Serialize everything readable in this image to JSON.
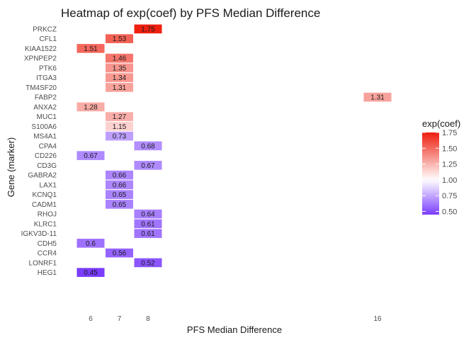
{
  "chart_data": {
    "type": "heatmap",
    "title": "Heatmap of exp(coef) by PFS Median Difference",
    "xlabel": "PFS Median Difference",
    "ylabel": "Gene (marker)",
    "x_categories": [
      "6",
      "7",
      "8",
      "16"
    ],
    "x_domain": [
      6,
      16
    ],
    "y_categories": [
      "PRKCZ",
      "CFL1",
      "KIAA1522",
      "XPNPEP2",
      "PTK6",
      "ITGA3",
      "TM4SF20",
      "FABP2",
      "ANXA2",
      "MUC1",
      "S100A6",
      "MS4A1",
      "CPA4",
      "CD226",
      "CD3G",
      "GABRA2",
      "LAX1",
      "KCNQ1",
      "CADM1",
      "RHOJ",
      "KLRC1",
      "IGKV3D-11",
      "CDH5",
      "CCR4",
      "LONRF1",
      "HEG1"
    ],
    "cells": [
      {
        "gene": "PRKCZ",
        "x": 8,
        "value": 1.75,
        "label": "1.75"
      },
      {
        "gene": "CFL1",
        "x": 7,
        "value": 1.53,
        "label": "1.53"
      },
      {
        "gene": "KIAA1522",
        "x": 6,
        "value": 1.51,
        "label": "1.51"
      },
      {
        "gene": "XPNPEP2",
        "x": 7,
        "value": 1.46,
        "label": "1.46"
      },
      {
        "gene": "PTK6",
        "x": 7,
        "value": 1.35,
        "label": "1.35"
      },
      {
        "gene": "ITGA3",
        "x": 7,
        "value": 1.34,
        "label": "1.34"
      },
      {
        "gene": "TM4SF20",
        "x": 7,
        "value": 1.31,
        "label": "1.31"
      },
      {
        "gene": "FABP2",
        "x": 16,
        "value": 1.31,
        "label": "1.31"
      },
      {
        "gene": "ANXA2",
        "x": 6,
        "value": 1.28,
        "label": "1.28"
      },
      {
        "gene": "MUC1",
        "x": 7,
        "value": 1.27,
        "label": "1.27"
      },
      {
        "gene": "S100A6",
        "x": 7,
        "value": 1.15,
        "label": "1.15"
      },
      {
        "gene": "MS4A1",
        "x": 7,
        "value": 0.73,
        "label": "0.73"
      },
      {
        "gene": "CPA4",
        "x": 8,
        "value": 0.68,
        "label": "0.68"
      },
      {
        "gene": "CD226",
        "x": 6,
        "value": 0.67,
        "label": "0.67"
      },
      {
        "gene": "CD3G",
        "x": 8,
        "value": 0.67,
        "label": "0.67"
      },
      {
        "gene": "GABRA2",
        "x": 7,
        "value": 0.66,
        "label": "0.66"
      },
      {
        "gene": "LAX1",
        "x": 7,
        "value": 0.66,
        "label": "0.66"
      },
      {
        "gene": "KCNQ1",
        "x": 7,
        "value": 0.65,
        "label": "0.65"
      },
      {
        "gene": "CADM1",
        "x": 7,
        "value": 0.65,
        "label": "0.65"
      },
      {
        "gene": "RHOJ",
        "x": 8,
        "value": 0.64,
        "label": "0.64"
      },
      {
        "gene": "KLRC1",
        "x": 8,
        "value": 0.61,
        "label": "0.61"
      },
      {
        "gene": "IGKV3D-11",
        "x": 8,
        "value": 0.61,
        "label": "0.61"
      },
      {
        "gene": "CDH5",
        "x": 6,
        "value": 0.6,
        "label": "0.6"
      },
      {
        "gene": "CCR4",
        "x": 7,
        "value": 0.56,
        "label": "0.56"
      },
      {
        "gene": "LONRF1",
        "x": 8,
        "value": 0.52,
        "label": "0.52"
      },
      {
        "gene": "HEG1",
        "x": 6,
        "value": 0.45,
        "label": "0.45"
      }
    ],
    "legend": {
      "title": "exp(coef)",
      "placement": "right",
      "ticks": [
        "1.75",
        "1.50",
        "1.25",
        "1.00",
        "0.75",
        "0.50"
      ],
      "domain": [
        0.45,
        1.75
      ],
      "midpoint": 1.0,
      "low_color": "#7a3cff",
      "mid_color": "#ffffff",
      "high_color": "#ee1f0f"
    },
    "grid": false
  }
}
